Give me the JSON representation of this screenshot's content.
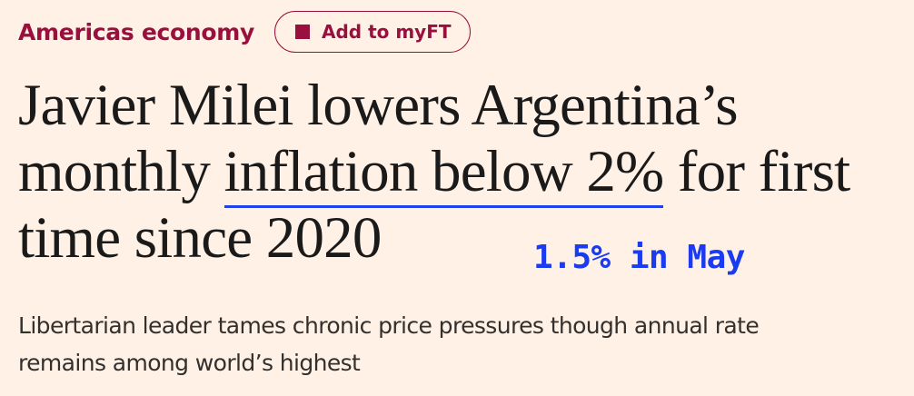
{
  "header": {
    "section_label": "Americas economy",
    "myft_label": "Add to myFT",
    "myft_icon": "square-icon"
  },
  "headline": {
    "line1": "Javier Milei lowers Argentina’s",
    "line2_before": "monthly ",
    "line2_highlight": "inflation below 2%",
    "line2_after": " for first",
    "line3": "time since 2020"
  },
  "annotation": {
    "text": "1.5% in May",
    "color": "#1a3bf0"
  },
  "standfirst": {
    "line1": "Libertarian leader tames chronic price pressures though annual rate",
    "line2": "remains among world’s highest"
  },
  "colors": {
    "background": "#fff1e5",
    "brand": "#990f3d",
    "underline": "#2040e8",
    "headline_text": "#1a1a1a"
  }
}
